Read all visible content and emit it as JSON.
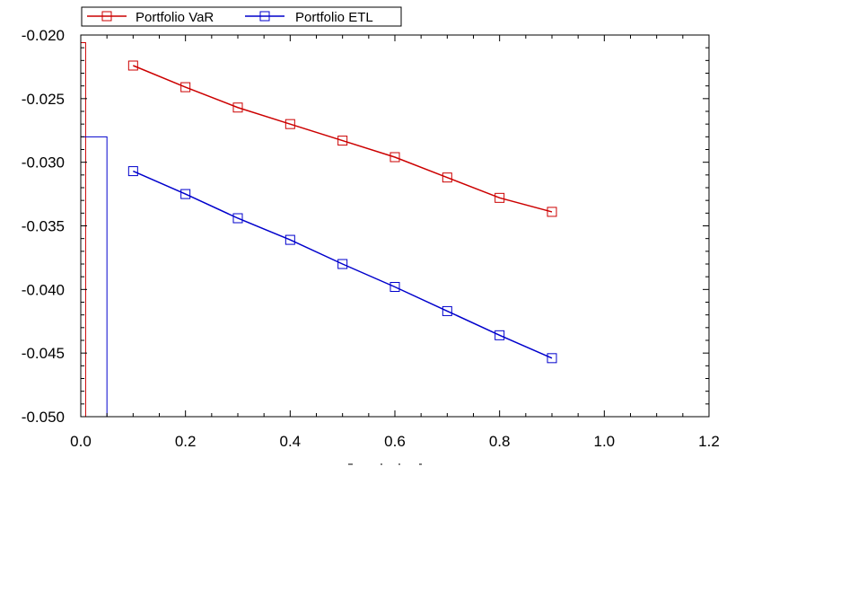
{
  "chart_data": {
    "type": "line",
    "title": "",
    "xlabel": "",
    "ylabel": "",
    "xlim": [
      0.0,
      1.2
    ],
    "ylim": [
      -0.05,
      -0.02
    ],
    "x_ticks": [
      "0.0",
      "0.2",
      "0.4",
      "0.6",
      "0.8",
      "1.0",
      "1.2"
    ],
    "y_ticks": [
      "-0.020",
      "-0.025",
      "-0.030",
      "-0.035",
      "-0.040",
      "-0.045",
      "-0.050"
    ],
    "grid": false,
    "legend_position": "top-left",
    "x": [
      0.1,
      0.2,
      0.3,
      0.4,
      0.5,
      0.6,
      0.7,
      0.8,
      0.9
    ],
    "series": [
      {
        "name": "Portfolio VaR",
        "color": "#cc0000",
        "marker": "square",
        "values": [
          -0.0224,
          -0.0241,
          -0.0257,
          -0.027,
          -0.0283,
          -0.0296,
          -0.0312,
          -0.0328,
          -0.0339
        ]
      },
      {
        "name": "Portfolio ETL",
        "color": "#0000cc",
        "marker": "square",
        "values": [
          -0.0307,
          -0.0325,
          -0.0344,
          -0.0361,
          -0.038,
          -0.0398,
          -0.0417,
          -0.0436,
          -0.0454
        ]
      }
    ],
    "histogram_bars": [
      {
        "x_start": 0.0,
        "x_end": 0.0093,
        "top": -0.0206,
        "color": "#cc0000"
      },
      {
        "x_start": 0.0,
        "x_end": 0.05,
        "top": -0.028,
        "color": "#0000cc"
      }
    ]
  }
}
